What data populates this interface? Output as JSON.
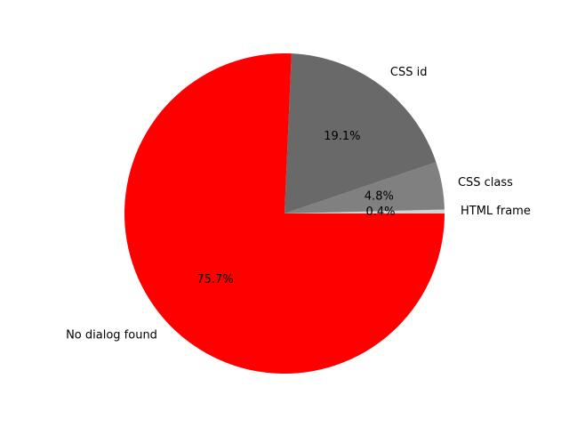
{
  "chart_data": {
    "type": "pie",
    "start_angle_deg": 0,
    "direction": "counterclockwise",
    "slices": [
      {
        "label": "HTML frame",
        "value": 0.4,
        "pct_label": "0.4%",
        "color": "#d3d3d3"
      },
      {
        "label": "CSS class",
        "value": 4.8,
        "pct_label": "4.8%",
        "color": "#808080"
      },
      {
        "label": "CSS id",
        "value": 19.1,
        "pct_label": "19.1%",
        "color": "#696969"
      },
      {
        "label": "No dialog found",
        "value": 75.7,
        "pct_label": "75.7%",
        "color": "#ff0000"
      }
    ]
  }
}
